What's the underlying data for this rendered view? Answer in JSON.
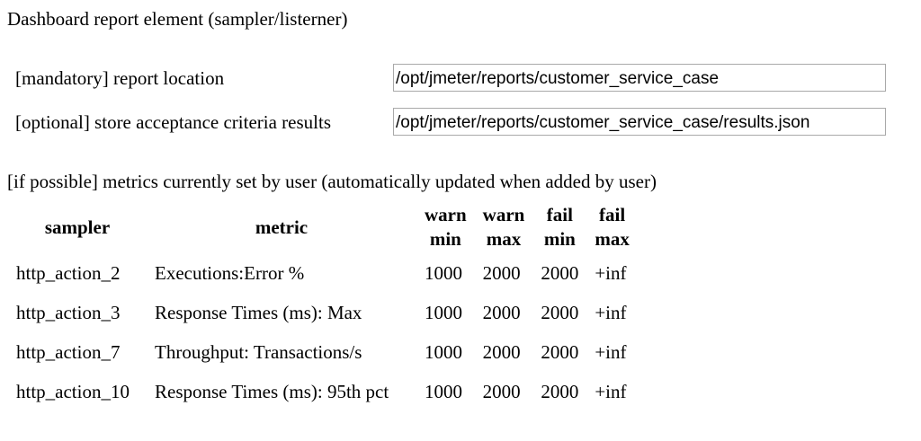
{
  "page": {
    "title": "Dashboard report element (sampler/listerner)"
  },
  "form": {
    "report_location": {
      "label": "[mandatory] report location",
      "value": "/opt/jmeter/reports/customer_service_case"
    },
    "acceptance_results": {
      "label": "[optional] store acceptance criteria results",
      "value": "/opt/jmeter/reports/customer_service_case/results.json"
    }
  },
  "metrics": {
    "caption": "[if possible] metrics currently set by user (automatically updated when added by user)",
    "headers": {
      "sampler": "sampler",
      "metric": "metric",
      "warn_min": [
        "warn",
        "min"
      ],
      "warn_max": [
        "warn",
        "max"
      ],
      "fail_min": [
        "fail",
        "min"
      ],
      "fail_max": [
        "fail",
        "max"
      ]
    },
    "rows": [
      {
        "sampler": "http_action_2",
        "metric": "Executions:Error %",
        "warn_min": "1000",
        "warn_max": "2000",
        "fail_min": "2000",
        "fail_max": "+inf"
      },
      {
        "sampler": "http_action_3",
        "metric": "Response Times (ms): Max",
        "warn_min": "1000",
        "warn_max": "2000",
        "fail_min": "2000",
        "fail_max": "+inf"
      },
      {
        "sampler": "http_action_7",
        "metric": "Throughput: Transactions/s",
        "warn_min": "1000",
        "warn_max": "2000",
        "fail_min": "2000",
        "fail_max": "+inf"
      },
      {
        "sampler": "http_action_10",
        "metric": "Response Times (ms): 95th pct",
        "warn_min": "1000",
        "warn_max": "2000",
        "fail_min": "2000",
        "fail_max": "+inf"
      }
    ]
  }
}
